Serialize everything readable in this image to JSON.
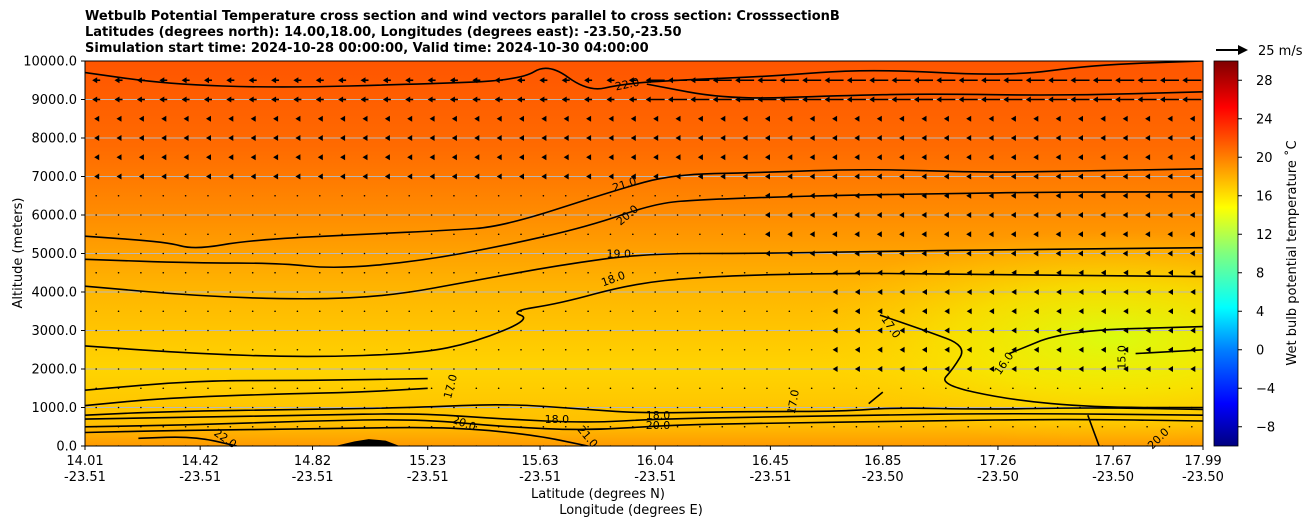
{
  "chart_data": {
    "type": "heatmap",
    "title_lines": [
      "Wetbulb Potential Temperature cross section and wind vectors parallel to cross section: CrosssectionB",
      "Latitudes (degrees north): 14.00,18.00, Longitudes (degrees east): -23.50,-23.50",
      "Simulation start time: 2024-10-28 00:00:00, Valid time: 2024-10-30 04:00:00"
    ],
    "xlabel": "Latitude (degrees N)",
    "xlabel2": "Longitude (degrees E)",
    "ylabel": "Altitude (meters)",
    "colorbar_label": "Wet bulb potential temperature $^\\circ$C",
    "colorbar_label_text": "Wet bulb potential temperature ˚C",
    "colorbar_range": [
      -10,
      30
    ],
    "colorbar_ticks": [
      "−8",
      "−4",
      "0",
      "4",
      "8",
      "12",
      "16",
      "20",
      "24",
      "28"
    ],
    "colorbar_tick_values": [
      -8,
      -4,
      0,
      4,
      8,
      12,
      16,
      20,
      24,
      28
    ],
    "quiver_key": "25 m/s",
    "ylim": [
      0,
      10000
    ],
    "y_ticks": [
      "0.0",
      "1000.0",
      "2000.0",
      "3000.0",
      "4000.0",
      "5000.0",
      "6000.0",
      "7000.0",
      "8000.0",
      "9000.0",
      "10000.0"
    ],
    "y_tick_values": [
      0,
      1000,
      2000,
      3000,
      4000,
      5000,
      6000,
      7000,
      8000,
      9000,
      10000
    ],
    "x_ticks": [
      {
        "lat": "14.01",
        "lon": "-23.51"
      },
      {
        "lat": "14.42",
        "lon": "-23.51"
      },
      {
        "lat": "14.82",
        "lon": "-23.51"
      },
      {
        "lat": "15.23",
        "lon": "-23.51"
      },
      {
        "lat": "15.63",
        "lon": "-23.51"
      },
      {
        "lat": "16.04",
        "lon": "-23.51"
      },
      {
        "lat": "16.45",
        "lon": "-23.51"
      },
      {
        "lat": "16.85",
        "lon": "-23.50"
      },
      {
        "lat": "17.26",
        "lon": "-23.50"
      },
      {
        "lat": "17.67",
        "lon": "-23.50"
      },
      {
        "lat": "17.99",
        "lon": "-23.50"
      }
    ],
    "xlim": [
      14.01,
      17.99
    ],
    "grid": true,
    "contour_labels": [
      {
        "text": "22.0",
        "lat": 15.94,
        "alt": 9400,
        "angle": -12
      },
      {
        "text": "21.0",
        "lat": 15.93,
        "alt": 6800,
        "angle": -18
      },
      {
        "text": "20.0",
        "lat": 15.94,
        "alt": 6000,
        "angle": -40
      },
      {
        "text": "19.0",
        "lat": 15.91,
        "alt": 5000,
        "angle": 0
      },
      {
        "text": "18.0",
        "lat": 15.89,
        "alt": 4350,
        "angle": -20
      },
      {
        "text": "17.0",
        "lat": 16.88,
        "alt": 3100,
        "angle": 55
      },
      {
        "text": "17.0",
        "lat": 15.31,
        "alt": 1550,
        "angle": -75
      },
      {
        "text": "17.0",
        "lat": 16.53,
        "alt": 1150,
        "angle": -80
      },
      {
        "text": "16.0",
        "lat": 17.28,
        "alt": 2150,
        "angle": -55
      },
      {
        "text": "15.0",
        "lat": 17.7,
        "alt": 2300,
        "angle": -90
      },
      {
        "text": "18.0",
        "lat": 15.69,
        "alt": 700,
        "angle": 0
      },
      {
        "text": "18.0",
        "lat": 16.05,
        "alt": 800,
        "angle": 0
      },
      {
        "text": "20.0",
        "lat": 16.05,
        "alt": 550,
        "angle": 0
      },
      {
        "text": "20.0",
        "lat": 15.36,
        "alt": 600,
        "angle": 20
      },
      {
        "text": "21.0",
        "lat": 15.8,
        "alt": 250,
        "angle": 50
      },
      {
        "text": "22.0",
        "lat": 14.51,
        "alt": 200,
        "angle": 35
      },
      {
        "text": "20.0",
        "lat": 17.83,
        "alt": 200,
        "angle": -45
      }
    ],
    "contours": [
      {
        "level": 22,
        "points": [
          [
            14.01,
            9700
          ],
          [
            14.3,
            9400
          ],
          [
            14.7,
            9300
          ],
          [
            15.2,
            9400
          ],
          [
            15.56,
            9500
          ],
          [
            15.66,
            9950
          ],
          [
            15.8,
            9200
          ],
          [
            15.92,
            9400
          ],
          [
            16.1,
            9500
          ],
          [
            16.45,
            9600
          ],
          [
            16.8,
            9800
          ],
          [
            17.3,
            9600
          ],
          [
            17.6,
            9900
          ],
          [
            17.99,
            10000
          ]
        ]
      },
      {
        "level": 22,
        "points": [
          [
            16.01,
            9400
          ],
          [
            16.3,
            9000
          ],
          [
            16.7,
            9100
          ],
          [
            17.0,
            9150
          ],
          [
            17.5,
            9100
          ],
          [
            17.99,
            9200
          ]
        ]
      },
      {
        "level": 21,
        "points": [
          [
            14.01,
            5450
          ],
          [
            14.3,
            5300
          ],
          [
            14.4,
            5100
          ],
          [
            14.6,
            5350
          ],
          [
            15.0,
            5500
          ],
          [
            15.3,
            5600
          ],
          [
            15.5,
            5700
          ],
          [
            15.9,
            6650
          ],
          [
            16.1,
            7050
          ],
          [
            16.4,
            7100
          ],
          [
            16.8,
            7200
          ],
          [
            17.2,
            7100
          ],
          [
            17.6,
            7150
          ],
          [
            17.99,
            7200
          ]
        ]
      },
      {
        "level": 20,
        "points": [
          [
            14.01,
            4850
          ],
          [
            14.4,
            4750
          ],
          [
            14.7,
            4750
          ],
          [
            14.9,
            4600
          ],
          [
            15.2,
            4800
          ],
          [
            15.5,
            5200
          ],
          [
            15.8,
            5700
          ],
          [
            16.04,
            6300
          ],
          [
            16.2,
            6400
          ],
          [
            16.6,
            6500
          ],
          [
            17.0,
            6550
          ],
          [
            17.5,
            6600
          ],
          [
            17.99,
            6600
          ]
        ]
      },
      {
        "level": 19,
        "points": [
          [
            14.01,
            4150
          ],
          [
            14.4,
            3900
          ],
          [
            14.8,
            3800
          ],
          [
            15.1,
            3900
          ],
          [
            15.4,
            4300
          ],
          [
            15.7,
            4700
          ],
          [
            16.0,
            5000
          ],
          [
            16.4,
            5000
          ],
          [
            16.8,
            5050
          ],
          [
            17.3,
            5100
          ],
          [
            17.99,
            5150
          ]
        ]
      },
      {
        "level": 18,
        "points": [
          [
            14.01,
            2600
          ],
          [
            14.4,
            2400
          ],
          [
            14.8,
            2300
          ],
          [
            15.2,
            2400
          ],
          [
            15.4,
            2700
          ],
          [
            15.6,
            3300
          ],
          [
            15.52,
            3500
          ],
          [
            15.7,
            3700
          ],
          [
            15.95,
            4200
          ],
          [
            16.2,
            4400
          ],
          [
            16.7,
            4500
          ],
          [
            17.2,
            4450
          ],
          [
            17.99,
            4400
          ]
        ]
      },
      {
        "level": 17,
        "points": [
          [
            14.01,
            1450
          ],
          [
            14.4,
            1700
          ],
          [
            14.8,
            1700
          ],
          [
            15.23,
            1750
          ]
        ]
      },
      {
        "level": 17,
        "points": [
          [
            14.01,
            1050
          ],
          [
            14.3,
            1250
          ],
          [
            14.7,
            1350
          ],
          [
            15.0,
            1400
          ],
          [
            15.23,
            1500
          ]
        ]
      },
      {
        "level": 17,
        "points": [
          [
            16.84,
            3400
          ],
          [
            17.0,
            3000
          ],
          [
            17.15,
            2600
          ],
          [
            17.1,
            2000
          ],
          [
            17.05,
            1600
          ],
          [
            17.3,
            1200
          ],
          [
            17.6,
            1000
          ],
          [
            17.99,
            1000
          ]
        ]
      },
      {
        "level": 17,
        "points": [
          [
            16.8,
            1100
          ],
          [
            16.85,
            1400
          ]
        ]
      },
      {
        "level": 16,
        "points": [
          [
            17.3,
            2400
          ],
          [
            17.5,
            3000
          ],
          [
            17.99,
            3100
          ]
        ]
      },
      {
        "level": 15,
        "points": [
          [
            17.75,
            2400
          ],
          [
            17.99,
            2500
          ]
        ]
      },
      {
        "level": 18,
        "points": [
          [
            14.01,
            800
          ],
          [
            14.3,
            900
          ],
          [
            14.8,
            950
          ],
          [
            15.2,
            1000
          ],
          [
            15.5,
            1100
          ],
          [
            15.8,
            950
          ],
          [
            16.0,
            850
          ],
          [
            16.4,
            900
          ],
          [
            16.7,
            900
          ],
          [
            16.9,
            1000
          ],
          [
            17.2,
            950
          ],
          [
            17.6,
            1000
          ],
          [
            17.99,
            950
          ]
        ]
      },
      {
        "level": 19,
        "points": [
          [
            14.01,
            700
          ],
          [
            14.4,
            750
          ],
          [
            14.8,
            800
          ],
          [
            15.2,
            850
          ],
          [
            15.5,
            700
          ],
          [
            15.8,
            600
          ],
          [
            16.04,
            700
          ],
          [
            16.4,
            750
          ],
          [
            16.8,
            800
          ],
          [
            17.3,
            850
          ],
          [
            17.99,
            800
          ]
        ]
      },
      {
        "level": 20,
        "points": [
          [
            14.01,
            500
          ],
          [
            14.4,
            550
          ],
          [
            14.8,
            650
          ],
          [
            15.2,
            700
          ],
          [
            15.5,
            500
          ],
          [
            15.8,
            400
          ],
          [
            16.1,
            550
          ],
          [
            16.5,
            600
          ],
          [
            17.0,
            650
          ],
          [
            17.5,
            700
          ],
          [
            17.99,
            650
          ]
        ]
      },
      {
        "level": 21,
        "points": [
          [
            14.01,
            350
          ],
          [
            14.3,
            400
          ],
          [
            14.9,
            450
          ],
          [
            15.3,
            500
          ],
          [
            15.6,
            300
          ],
          [
            15.8,
            0
          ]
        ]
      },
      {
        "level": 20,
        "points": [
          [
            17.58,
            800
          ],
          [
            17.6,
            400
          ],
          [
            17.62,
            0
          ]
        ]
      },
      {
        "level": 22,
        "points": [
          [
            14.2,
            200
          ],
          [
            14.4,
            250
          ],
          [
            14.55,
            0
          ]
        ]
      }
    ],
    "terrain": [
      [
        14.9,
        0
      ],
      [
        14.97,
        120
      ],
      [
        15.02,
        180
      ],
      [
        15.08,
        140
      ],
      [
        15.13,
        0
      ]
    ]
  }
}
